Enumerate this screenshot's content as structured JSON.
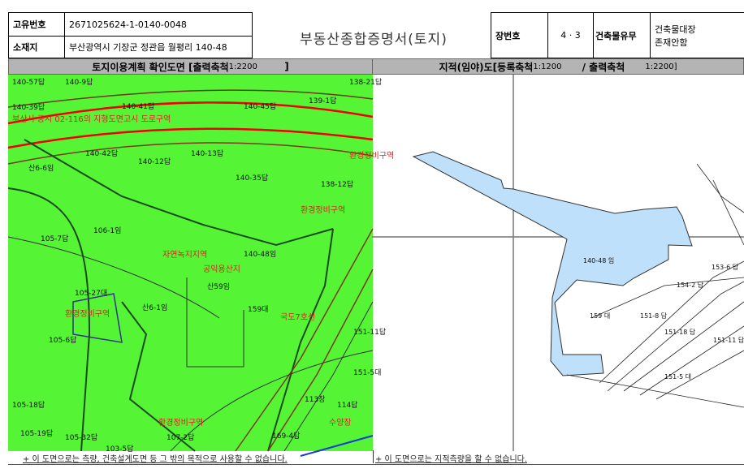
{
  "header": {
    "id_label": "고유번호",
    "id_value": "2671025624-1-0140-0048",
    "address_label": "소재지",
    "address_value": "부산광역시 기장군 정관읍 월평리 140-48",
    "title": "부동산종합증명서(토지)",
    "sheet_label": "장번호",
    "sheet_value": "4 · 3",
    "building_label": "건축물유무",
    "building_value_1": "건축물대장",
    "building_value_2": "존재안함"
  },
  "left_panel": {
    "heading": "토지이용계획 확인도면 [출력축척",
    "scale": "1:2200",
    "close": "]",
    "map_color": "#55f535",
    "parcel_labels": [
      "140-57답",
      "140-9답",
      "140-39답",
      "140-41답",
      "140-45답",
      "139-1답",
      "138-21답",
      "140-42답",
      "140-12답",
      "140-13답",
      "140-35답",
      "138-12답",
      "산6-6임",
      "105-7답",
      "106-1임",
      "140-48임",
      "산6-1임",
      "105-27대",
      "105-6답",
      "산59임",
      "159대",
      "105-18답",
      "105-19답",
      "105-32답",
      "113장",
      "114답",
      "151-5대",
      "151-11답",
      "107-2답",
      "169-4답",
      "103-5답"
    ],
    "zone_labels": [
      "부산시 공시 02-116의 지형도면고시 도로구역",
      "환경정비구역",
      "환경정비구역",
      "자연녹지지역",
      "공익용산지",
      "환경정비구역",
      "국도7호선",
      "환경정비구역",
      "수양장"
    ]
  },
  "right_panel": {
    "heading": "지적(임야)도[등록축척",
    "reg_scale": "1:1200",
    "out_label": "/ 출력축척",
    "out_scale": "1:2200]",
    "parcel_color": "#bfe0fa",
    "parcel_labels": [
      "140-48 임",
      "159 대",
      "151-5 대",
      "151-11 답",
      "154-2 답",
      "153-6 답",
      "151-18 답",
      "151-8 답"
    ]
  },
  "footer": {
    "left_note": "+ 이 도면으로는 측량, 건축설계도면 등 그 밖의 목적으로 사용할 수 없습니다.",
    "right_note": "+ 이 도면으로는 지적측량을 할 수 없습니다."
  }
}
